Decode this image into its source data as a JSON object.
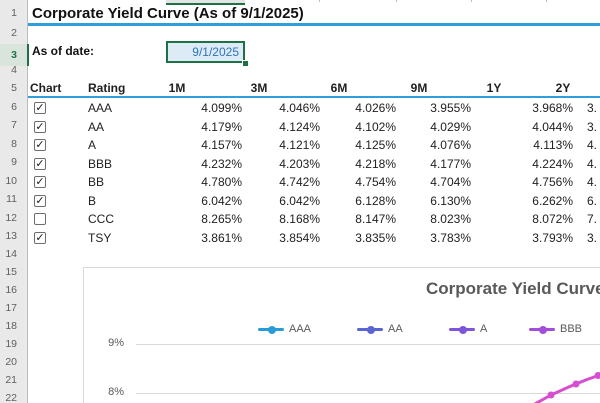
{
  "title": "Corporate Yield Curve (As of 9/1/2025)",
  "as_of": {
    "label": "As of date:",
    "value": "9/1/2025"
  },
  "row_numbers": [
    "1",
    "2",
    "3",
    "4",
    "5",
    "6",
    "7",
    "8",
    "9",
    "10",
    "11",
    "12",
    "13",
    "14",
    "15",
    "16",
    "17",
    "18",
    "19",
    "20",
    "21",
    "22"
  ],
  "selected_row_number": "3",
  "table": {
    "header_chart": "Chart",
    "header_rating": "Rating",
    "tenors": [
      "1M",
      "3M",
      "6M",
      "9M",
      "1Y",
      "2Y"
    ],
    "rows": [
      {
        "checked": true,
        "rating": "AAA",
        "values": [
          "4.099%",
          "4.046%",
          "4.026%",
          "3.955%",
          "3.968%"
        ],
        "partial_2y": "3."
      },
      {
        "checked": true,
        "rating": "AA",
        "values": [
          "4.179%",
          "4.124%",
          "4.102%",
          "4.029%",
          "4.044%"
        ],
        "partial_2y": "3."
      },
      {
        "checked": true,
        "rating": "A",
        "values": [
          "4.157%",
          "4.121%",
          "4.125%",
          "4.076%",
          "4.113%"
        ],
        "partial_2y": "4."
      },
      {
        "checked": true,
        "rating": "BBB",
        "values": [
          "4.232%",
          "4.203%",
          "4.218%",
          "4.177%",
          "4.224%"
        ],
        "partial_2y": "4."
      },
      {
        "checked": true,
        "rating": "BB",
        "values": [
          "4.780%",
          "4.742%",
          "4.754%",
          "4.704%",
          "4.756%"
        ],
        "partial_2y": "4."
      },
      {
        "checked": true,
        "rating": "B",
        "values": [
          "6.042%",
          "6.042%",
          "6.128%",
          "6.130%",
          "6.262%"
        ],
        "partial_2y": "6."
      },
      {
        "checked": false,
        "rating": "CCC",
        "values": [
          "8.265%",
          "8.168%",
          "8.147%",
          "8.023%",
          "8.072%"
        ],
        "partial_2y": "7."
      },
      {
        "checked": true,
        "rating": "TSY",
        "values": [
          "3.861%",
          "3.854%",
          "3.835%",
          "3.783%",
          "3.793%"
        ],
        "partial_2y": "3."
      }
    ]
  },
  "chart": {
    "title": "Corporate Yield Curve",
    "legend": [
      {
        "label": "AAA",
        "color": "#2B9BD7"
      },
      {
        "label": "AA",
        "color": "#5B64D3"
      },
      {
        "label": "A",
        "color": "#7E55D8"
      },
      {
        "label": "BBB",
        "color": "#A24ED8"
      }
    ],
    "y_axis_labels": [
      "9%",
      "8%"
    ],
    "visible_series_color": "#D54FD0"
  },
  "colors": {
    "accent_blue": "#2E9FD9",
    "selection_green": "#1E7145",
    "date_cell_bg": "#DDEBF7",
    "date_cell_text": "#2E75B6"
  }
}
